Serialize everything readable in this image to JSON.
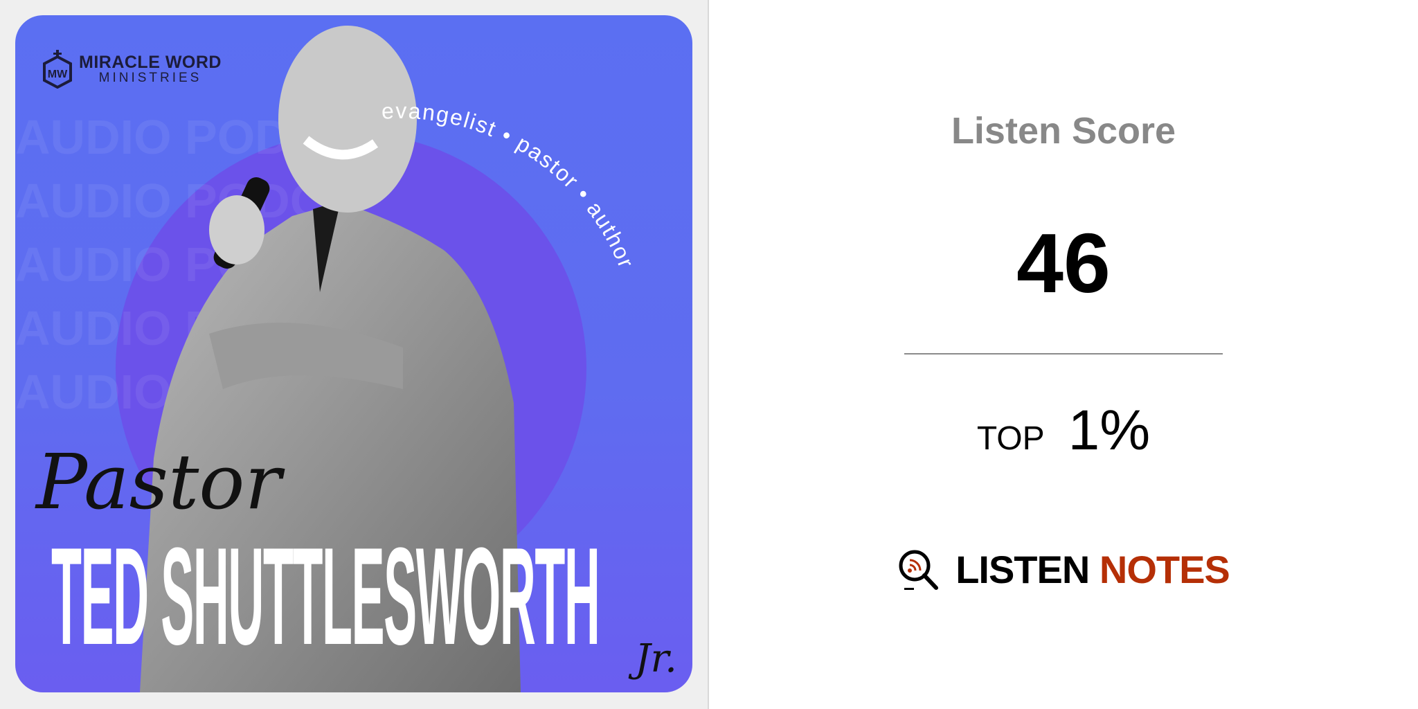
{
  "artwork": {
    "brand_name": "MIRACLE WORD",
    "brand_sub": "MINISTRIES",
    "brand_monogram": "MW",
    "watermark": "AUDIO PODCAST • AUDIO PODCAST • AUDIO PODCAST •",
    "roles": "evangelist • pastor • author",
    "title_prefix": "Pastor",
    "title_name": "TED SHUTTLESWORTH",
    "title_suffix": "Jr.",
    "colors": {
      "background": "#5b6ff2",
      "circle": "#6b52ea"
    }
  },
  "score_card": {
    "title": "Listen Score",
    "score": "46",
    "top_label": "TOP",
    "top_value": "1%",
    "logo": {
      "word1": "LISTEN",
      "word2": "NOTES",
      "icon": "magnifier-podcast-icon",
      "accent": "#b52f06"
    }
  }
}
